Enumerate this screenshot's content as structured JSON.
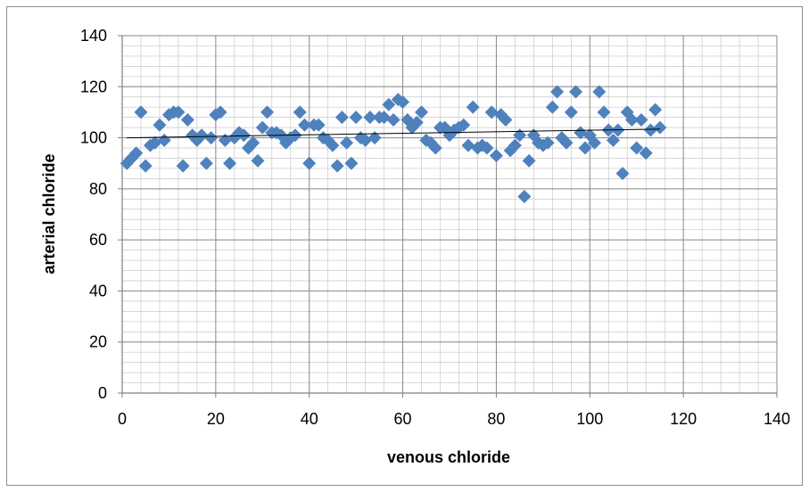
{
  "chart_data": {
    "type": "scatter",
    "title": "",
    "xlabel": "venous chloride",
    "ylabel": "arterial chloride",
    "xlim": [
      0,
      140
    ],
    "ylim": [
      0,
      140
    ],
    "x_ticks": [
      "0",
      "20",
      "40",
      "60",
      "80",
      "100",
      "120",
      "140"
    ],
    "y_ticks": [
      "0",
      "20",
      "40",
      "60",
      "80",
      "100",
      "120",
      "140"
    ],
    "grid": true,
    "legend": "none",
    "marker": "diamond",
    "marker_color": "#4f81bd",
    "trendline": {
      "type": "linear",
      "color": "#000000",
      "x": [
        1,
        115
      ],
      "y": [
        100.0,
        103.4
      ]
    },
    "series": [
      {
        "x": [
          1,
          2,
          3,
          4,
          5,
          6,
          7,
          8,
          9,
          10,
          11,
          12,
          13,
          14,
          15,
          16,
          17,
          18,
          19,
          20,
          21,
          22,
          23,
          24,
          25,
          26,
          27,
          28,
          29,
          30,
          31,
          32,
          33,
          34,
          35,
          36,
          37,
          38,
          39,
          40,
          41,
          42,
          43,
          44,
          45,
          46,
          47,
          48,
          49,
          50,
          51,
          52,
          53,
          54,
          55,
          56,
          57,
          58,
          59,
          60,
          61,
          62,
          63,
          64,
          65,
          66,
          67,
          68,
          69,
          70,
          71,
          72,
          73,
          74,
          75,
          76,
          77,
          78,
          79,
          80,
          81,
          82,
          83,
          84,
          85,
          86,
          87,
          88,
          89,
          90,
          91,
          92,
          93,
          94,
          95,
          96,
          97,
          98,
          99,
          100,
          101,
          102,
          103,
          104,
          105,
          106,
          107,
          108,
          109,
          110,
          111,
          112,
          113,
          114,
          115
        ],
        "y": [
          90,
          92,
          94,
          110,
          89,
          97,
          98,
          105,
          99,
          109,
          110,
          110,
          89,
          107,
          101,
          99,
          101,
          90,
          100,
          109,
          110,
          99,
          90,
          100,
          102,
          101,
          96,
          98,
          91,
          104,
          110,
          102,
          102,
          101,
          98,
          100,
          101,
          110,
          105,
          90,
          105,
          105,
          100,
          99,
          97,
          89,
          108,
          98,
          90,
          108,
          100,
          99,
          108,
          100,
          108,
          108,
          113,
          107,
          115,
          114,
          107,
          104,
          106,
          110,
          99,
          98,
          96,
          104,
          104,
          101,
          103,
          104,
          105,
          97,
          112,
          96,
          97,
          96,
          110,
          93,
          109,
          107,
          95,
          97,
          101,
          77,
          91,
          101,
          98,
          97,
          98,
          112,
          118,
          100,
          98,
          110,
          118,
          102,
          96,
          101,
          98,
          118,
          110,
          103,
          99,
          103,
          86,
          110,
          107,
          96,
          107,
          94,
          103,
          111,
          104
        ]
      }
    ]
  }
}
